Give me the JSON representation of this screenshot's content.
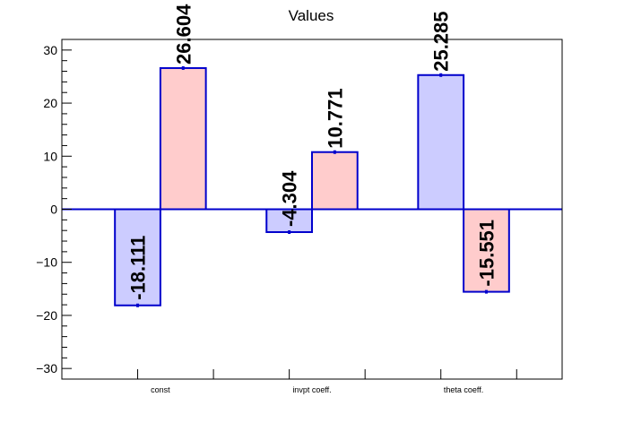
{
  "chart_data": {
    "type": "bar",
    "title": "Values",
    "categories": [
      "const",
      "invpt coeff.",
      "theta coeff."
    ],
    "series": [
      {
        "values": [
          -18.111,
          -4.304,
          25.285
        ],
        "color": "#ccccff",
        "data_labels": [
          "-18.111",
          "-4.304",
          "25.285"
        ]
      },
      {
        "values": [
          26.604,
          10.771,
          -15.551
        ],
        "color": "#ffcccc",
        "data_labels": [
          "26.604",
          "10.771",
          "-15.551"
        ]
      }
    ],
    "bar_edge_color": "#0000cc",
    "ylim": [
      -32,
      32
    ],
    "y_ticks": [
      {
        "value": -30,
        "label": "−30"
      },
      {
        "value": -20,
        "label": "−20"
      },
      {
        "value": -10,
        "label": "−10"
      },
      {
        "value": 0,
        "label": "0"
      },
      {
        "value": 10,
        "label": "10"
      },
      {
        "value": 20,
        "label": "20"
      },
      {
        "value": 30,
        "label": "30"
      }
    ],
    "xlabel": "",
    "ylabel": "",
    "grid": false,
    "legend": "none"
  }
}
